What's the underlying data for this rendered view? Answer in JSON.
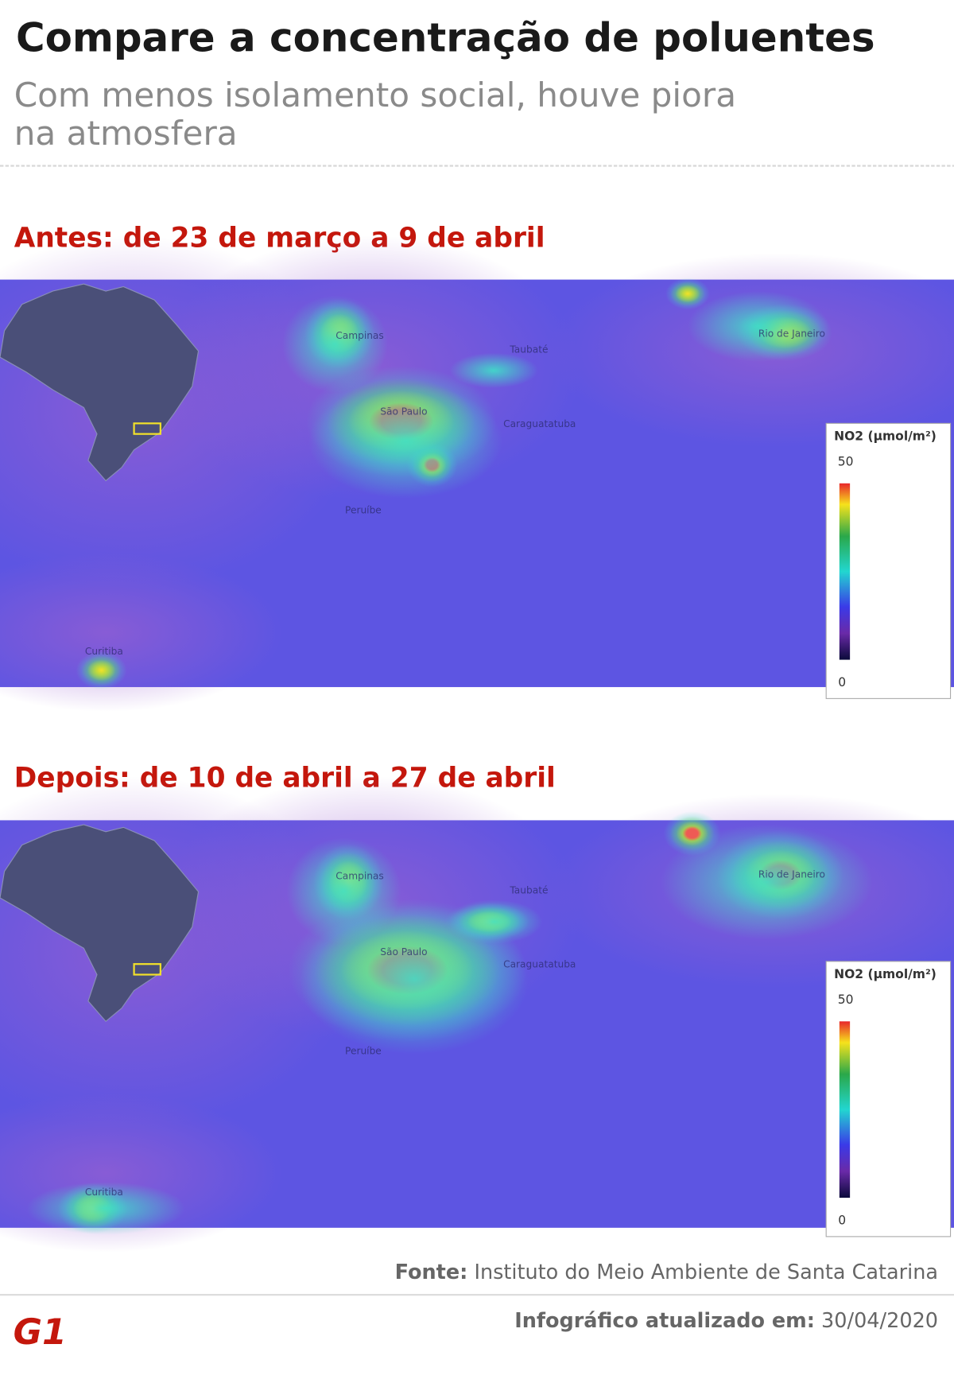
{
  "header": {
    "title": "Compare a concentração de poluentes",
    "subtitle": [
      "Com menos isolamento social, houve piora",
      "na  atmosfera"
    ]
  },
  "panels": [
    {
      "title": "Antes: de 23 de março a 9 de abril",
      "legend": {
        "title": "NO2 (µmol/m²)",
        "max": 50,
        "min": 0
      }
    },
    {
      "title": "Depois: de 10 de abril a 27 de abril",
      "legend": {
        "title": "NO2 (µmol/m²)",
        "max": 50,
        "min": 0
      }
    }
  ],
  "map_labels": [
    "São Paulo",
    "Rio de Janeiro",
    "Curitiba",
    "Campinas",
    "Taubaté",
    "Peruíbe",
    "Caraguatatuba"
  ],
  "footer": {
    "source_label": "Fonte:",
    "source": "Instituto do Meio Ambiente de Santa Catarina",
    "updated_label": "Infográfico atualizado em:",
    "updated": "30/04/2020",
    "logo": "G1"
  }
}
